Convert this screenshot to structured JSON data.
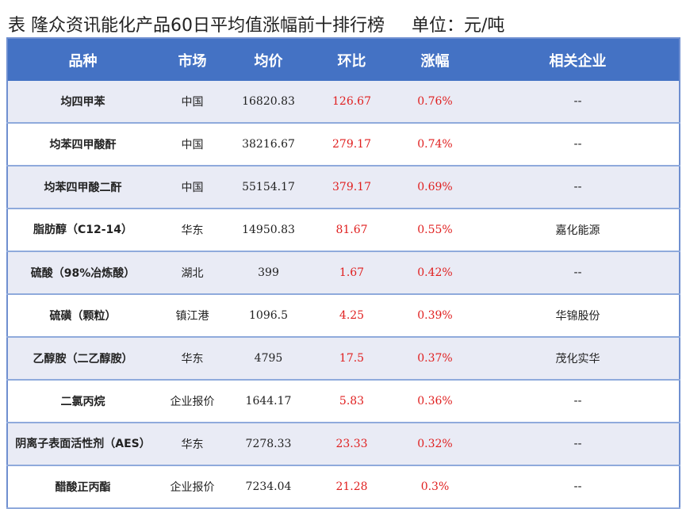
{
  "title": "表 隆众资讯能化产品60日平均值涨幅前十排行榜",
  "unit": "单位：元/吨",
  "headers": [
    "品种",
    "市场",
    "均价",
    "环比",
    "涨幅",
    "相关企业"
  ],
  "rows": [
    {
      "name": "均四甲苯",
      "market": "中国",
      "price": "16820.83",
      "mom": "126.67",
      "change": "0.76%",
      "company": "--"
    },
    {
      "name": "均苯四甲酸酐",
      "market": "中国",
      "price": "38216.67",
      "mom": "279.17",
      "change": "0.74%",
      "company": "--"
    },
    {
      "name": "均苯四甲酸二酐",
      "market": "中国",
      "price": "55154.17",
      "mom": "379.17",
      "change": "0.69%",
      "company": "--"
    },
    {
      "name": "脂肪醇（C12-14）",
      "market": "华东",
      "price": "14950.83",
      "mom": "81.67",
      "change": "0.55%",
      "company": "嘉化能源"
    },
    {
      "name": "硫酸（98%冶炼酸）",
      "market": "湖北",
      "price": "399",
      "mom": "1.67",
      "change": "0.42%",
      "company": "--"
    },
    {
      "name": "硫磺（颗粒）",
      "market": "镇江港",
      "price": "1096.5",
      "mom": "4.25",
      "change": "0.39%",
      "company": "华锦股份"
    },
    {
      "name": "乙醇胺（二乙醇胺）",
      "market": "华东",
      "price": "4795",
      "mom": "17.5",
      "change": "0.37%",
      "company": "茂化实华"
    },
    {
      "name": "二氯丙烷",
      "market": "企业报价",
      "price": "1644.17",
      "mom": "5.83",
      "change": "0.36%",
      "company": "--"
    },
    {
      "name": "阴离子表面活性剂（AES）",
      "market": "华东",
      "price": "7278.33",
      "mom": "23.33",
      "change": "0.32%",
      "company": "--"
    },
    {
      "name": "醋酸正丙酯",
      "market": "企业报价",
      "price": "7234.04",
      "mom": "21.28",
      "change": "0.3%",
      "company": "--"
    }
  ]
}
